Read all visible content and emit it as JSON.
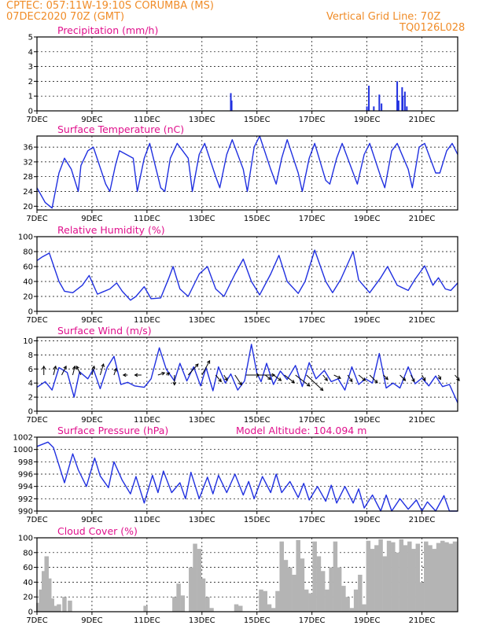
{
  "header": {
    "line1": "CPTEC:   057:11W-19:10S   CORUMBA (MS)",
    "line2": "07DEC2020 70Z (GMT)",
    "grid_note": "Vertical Grid Line: 70Z",
    "code": "TQ0126L028"
  },
  "colors": {
    "header": "#f08c28",
    "title": "#e0108c",
    "line": "#2030e0",
    "cloud": "#b4b4b4",
    "arrow": "#000000"
  },
  "x_axis": {
    "tick_labels": [
      "7DEC",
      "9DEC",
      "11DEC",
      "13DEC",
      "15DEC",
      "17DEC",
      "19DEC",
      "21DEC"
    ],
    "tick_days": [
      0,
      2,
      4,
      6,
      8,
      10,
      12,
      14
    ],
    "range_days": [
      0,
      15.3
    ]
  },
  "chart_data": [
    {
      "type": "bar",
      "title": "Precipitation (mm/h)",
      "ylim": [
        0,
        5
      ],
      "yticks": [
        0,
        1,
        2,
        3,
        4,
        5
      ],
      "x_units": "days from 7DEC",
      "x": [
        7.05,
        7.08,
        12.0,
        12.07,
        12.25,
        12.45,
        12.53,
        13.1,
        13.15,
        13.28,
        13.3,
        13.38,
        13.45
      ],
      "values": [
        1.2,
        0.7,
        0.3,
        1.7,
        0.3,
        1.1,
        0.5,
        2.0,
        0.7,
        1.6,
        1.0,
        1.3,
        0.3
      ]
    },
    {
      "type": "line",
      "title": "Surface Temperature (nC)",
      "ylim": [
        19,
        39
      ],
      "yticks": [
        20,
        24,
        28,
        32,
        36
      ],
      "x_units": "days from 7DEC",
      "x": [
        0,
        0.3,
        0.55,
        0.8,
        1.0,
        1.25,
        1.5,
        1.6,
        1.85,
        2.05,
        2.5,
        2.65,
        2.85,
        3.0,
        3.5,
        3.65,
        3.9,
        4.1,
        4.5,
        4.65,
        4.85,
        5.1,
        5.5,
        5.65,
        5.9,
        6.1,
        6.5,
        6.65,
        6.9,
        7.1,
        7.5,
        7.65,
        7.9,
        8.1,
        8.5,
        8.7,
        8.9,
        9.1,
        9.5,
        9.65,
        9.9,
        10.1,
        10.5,
        10.65,
        10.9,
        11.1,
        11.5,
        11.65,
        11.9,
        12.1,
        12.5,
        12.65,
        12.9,
        13.1,
        13.5,
        13.65,
        13.9,
        14.1,
        14.5,
        14.65,
        14.9,
        15.1,
        15.3
      ],
      "values": [
        25,
        21,
        19.5,
        29,
        33,
        30,
        24,
        31,
        35,
        36,
        26,
        24,
        31,
        35,
        33,
        24,
        33,
        37,
        25,
        24,
        33,
        37,
        33,
        24,
        34,
        37,
        28,
        25,
        34,
        38,
        30,
        24,
        36,
        39,
        30,
        26,
        33,
        38,
        29,
        24,
        33,
        37,
        27,
        26,
        33,
        37,
        29,
        26,
        34,
        37,
        28,
        25,
        35,
        37,
        30,
        25,
        36,
        37,
        29,
        29,
        35,
        37,
        34
      ]
    },
    {
      "type": "line",
      "title": "Relative Humidity (%)",
      "ylim": [
        0,
        100
      ],
      "yticks": [
        0,
        20,
        40,
        60,
        80,
        100
      ],
      "x_units": "days from 7DEC",
      "x": [
        0,
        0.2,
        0.45,
        0.8,
        1.0,
        1.3,
        1.65,
        1.9,
        2.2,
        2.65,
        2.9,
        3.1,
        3.4,
        3.6,
        3.9,
        4.15,
        4.5,
        4.8,
        4.95,
        5.2,
        5.5,
        5.9,
        6.2,
        6.5,
        6.8,
        7.2,
        7.5,
        7.8,
        8.1,
        8.5,
        8.8,
        9.1,
        9.5,
        9.75,
        10.1,
        10.5,
        10.75,
        11.05,
        11.5,
        11.7,
        12.1,
        12.5,
        12.75,
        13.1,
        13.5,
        13.75,
        14.1,
        14.4,
        14.6,
        14.85,
        15.05,
        15.3
      ],
      "values": [
        68,
        73,
        78,
        40,
        27,
        25,
        35,
        48,
        23,
        30,
        38,
        27,
        15,
        20,
        33,
        17,
        18,
        45,
        60,
        30,
        20,
        50,
        60,
        30,
        20,
        50,
        70,
        40,
        22,
        50,
        75,
        40,
        24,
        40,
        82,
        40,
        25,
        43,
        80,
        42,
        25,
        45,
        60,
        35,
        28,
        43,
        61,
        35,
        45,
        30,
        28,
        38
      ]
    },
    {
      "type": "line",
      "title": "Surface Wind (m/s)",
      "ylim": [
        0,
        10.5
      ],
      "yticks": [
        0,
        2,
        4,
        6,
        8,
        10
      ],
      "x_units": "days from 7DEC",
      "x": [
        0,
        0.3,
        0.55,
        0.8,
        1.1,
        1.35,
        1.55,
        1.85,
        2.05,
        2.3,
        2.55,
        2.8,
        3.05,
        3.3,
        3.55,
        3.9,
        4.15,
        4.45,
        4.7,
        5.0,
        5.2,
        5.45,
        5.7,
        5.95,
        6.15,
        6.4,
        6.6,
        6.85,
        7.05,
        7.3,
        7.55,
        7.8,
        8.0,
        8.15,
        8.35,
        8.6,
        8.85,
        9.1,
        9.4,
        9.65,
        9.9,
        10.15,
        10.45,
        10.7,
        10.95,
        11.2,
        11.45,
        11.7,
        11.95,
        12.2,
        12.45,
        12.7,
        12.95,
        13.2,
        13.5,
        13.75,
        14.0,
        14.25,
        14.5,
        14.75,
        15.0,
        15.3
      ],
      "values": [
        3.4,
        4.2,
        3.0,
        6.2,
        5.5,
        2.0,
        5.6,
        4.6,
        6.0,
        3.2,
        6.2,
        7.8,
        3.8,
        4.1,
        3.6,
        3.4,
        4.6,
        9.0,
        6.0,
        4.3,
        6.8,
        4.3,
        6.3,
        3.6,
        6.2,
        2.9,
        6.3,
        4.0,
        5.3,
        3.0,
        4.3,
        9.5,
        5.4,
        4.2,
        6.8,
        3.8,
        5.7,
        4.5,
        6.5,
        3.5,
        6.9,
        4.6,
        5.8,
        4.2,
        4.6,
        3.0,
        6.3,
        3.8,
        4.6,
        4.0,
        8.2,
        3.3,
        4.0,
        3.3,
        6.3,
        3.9,
        4.7,
        3.6,
        5.0,
        3.5,
        3.8,
        1.2
      ]
    },
    {
      "type": "line",
      "title": "Surface Pressure (hPa)",
      "annotation": "Model Altitude: 104.094 m",
      "ylim": [
        990,
        1002
      ],
      "yticks": [
        990,
        992,
        994,
        996,
        998,
        1000,
        1002
      ],
      "x_units": "days from 7DEC",
      "x": [
        0,
        0.4,
        0.6,
        1.0,
        1.3,
        1.5,
        1.8,
        2.1,
        2.3,
        2.6,
        2.8,
        3.1,
        3.4,
        3.6,
        3.9,
        4.2,
        4.4,
        4.6,
        4.9,
        5.2,
        5.4,
        5.6,
        5.9,
        6.2,
        6.4,
        6.6,
        6.9,
        7.2,
        7.5,
        7.7,
        7.9,
        8.2,
        8.5,
        8.7,
        8.9,
        9.2,
        9.5,
        9.7,
        9.9,
        10.2,
        10.5,
        10.7,
        10.9,
        11.2,
        11.5,
        11.7,
        11.9,
        12.2,
        12.5,
        12.7,
        12.9,
        13.2,
        13.5,
        13.8,
        14.0,
        14.2,
        14.5,
        14.8,
        15.0,
        15.3
      ],
      "values": [
        1000.5,
        1001.2,
        1000.3,
        994.6,
        999.3,
        996.7,
        994.0,
        998.6,
        995.7,
        993.8,
        998.0,
        995.0,
        992.8,
        995.6,
        991.3,
        995.8,
        993.0,
        996.5,
        993.0,
        994.6,
        992.0,
        996.3,
        992.0,
        995.5,
        992.8,
        995.8,
        993.0,
        996.0,
        992.6,
        994.8,
        992.0,
        995.6,
        993.0,
        996.0,
        993.0,
        994.8,
        992.2,
        994.5,
        991.8,
        994.0,
        991.6,
        994.2,
        991.3,
        994.0,
        991.3,
        993.6,
        990.5,
        992.6,
        990.0,
        992.6,
        989.9,
        992.0,
        990.3,
        991.8,
        989.8,
        991.5,
        989.5,
        992.5,
        989.5,
        989.8
      ]
    },
    {
      "type": "bar",
      "title": "Cloud Cover (%)",
      "ylim": [
        0,
        100
      ],
      "yticks": [
        0,
        20,
        40,
        60,
        80,
        100
      ],
      "x_units": "days from 7DEC",
      "x": [
        0.05,
        0.15,
        0.25,
        0.35,
        0.45,
        0.55,
        0.65,
        0.8,
        1.0,
        1.2,
        1.35,
        1.5,
        1.65,
        1.8,
        1.95,
        2.1,
        2.3,
        2.45,
        2.6,
        2.75,
        2.9,
        3.05,
        3.2,
        3.35,
        3.5,
        3.65,
        3.8,
        3.95,
        4.1,
        4.25,
        4.4,
        4.55,
        4.7,
        4.85,
        5.0,
        5.15,
        5.3,
        5.45,
        5.6,
        5.75,
        5.9,
        6.05,
        6.2,
        6.35,
        6.5,
        6.65,
        6.8,
        6.95,
        7.1,
        7.25,
        7.4,
        7.55,
        7.7,
        7.85,
        8.0,
        8.15,
        8.3,
        8.45,
        8.6,
        8.75,
        8.9,
        9.05,
        9.2,
        9.35,
        9.5,
        9.65,
        9.8,
        9.95,
        10.1,
        10.25,
        10.4,
        10.55,
        10.7,
        10.85,
        11.0,
        11.15,
        11.3,
        11.45,
        11.6,
        11.75,
        11.9,
        12.05,
        12.2,
        12.35,
        12.5,
        12.65,
        12.8,
        12.95,
        13.1,
        13.25,
        13.4,
        13.55,
        13.7,
        13.85,
        14.0,
        14.15,
        14.3,
        14.45,
        14.6,
        14.75,
        14.9,
        15.05,
        15.2
      ],
      "values": [
        12,
        30,
        55,
        75,
        45,
        18,
        8,
        10,
        20,
        15,
        0,
        0,
        0,
        0,
        0,
        0,
        0,
        0,
        0,
        0,
        0,
        0,
        0,
        0,
        0,
        0,
        0,
        8,
        0,
        0,
        0,
        0,
        0,
        0,
        20,
        38,
        22,
        0,
        60,
        92,
        85,
        45,
        20,
        5,
        0,
        0,
        0,
        0,
        0,
        10,
        8,
        0,
        0,
        0,
        0,
        30,
        28,
        10,
        5,
        28,
        95,
        70,
        60,
        50,
        97,
        72,
        30,
        25,
        95,
        75,
        55,
        30,
        60,
        95,
        60,
        35,
        20,
        5,
        30,
        50,
        10,
        96,
        85,
        90,
        98,
        75,
        96,
        94,
        80,
        98,
        90,
        95,
        85,
        92,
        40,
        95,
        90,
        85,
        93,
        96,
        94,
        92,
        95
      ]
    }
  ],
  "wind_arrows": {
    "x_units": "days from 7DEC",
    "x": [
      0.25,
      0.6,
      0.9,
      1.3,
      1.6,
      2.0,
      2.3,
      2.8,
      3.3,
      3.8,
      4.4,
      4.7,
      5.0,
      5.5,
      6.0,
      6.5,
      6.8,
      7.2,
      7.6,
      7.8,
      8.3,
      8.6,
      9.0,
      9.4,
      9.8,
      10.4,
      10.8,
      11.3,
      11.7,
      12.1,
      12.6,
      13.2,
      13.6,
      14.0,
      14.6,
      15.2
    ],
    "u": [
      0,
      0.2,
      0.4,
      0.2,
      -0.4,
      0.2,
      0.3,
      0.2,
      -0.4,
      -0.6,
      0.6,
      0.3,
      0,
      0.9,
      0.7,
      0.5,
      0.3,
      0.6,
      1.2,
      2.1,
      0.5,
      0.7,
      0.9,
      1.3,
      1.5,
      0.4,
      0.6,
      0.4,
      0.6,
      0.7,
      0.4,
      0.5,
      0.3,
      0.3,
      0.2,
      0.4
    ],
    "v": [
      0.8,
      0.8,
      0.8,
      0.8,
      0.8,
      0.8,
      1.0,
      0.6,
      0,
      0,
      0.2,
      0.2,
      -0.9,
      1.0,
      1.3,
      -0.6,
      -0.5,
      -0.9,
      0,
      0,
      -0.4,
      -0.5,
      -0.7,
      -1.0,
      -1.4,
      -0.5,
      -0.3,
      -0.6,
      -0.5,
      -0.7,
      -0.4,
      -0.5,
      -0.6,
      -0.5,
      -0.4,
      -0.5
    ]
  }
}
